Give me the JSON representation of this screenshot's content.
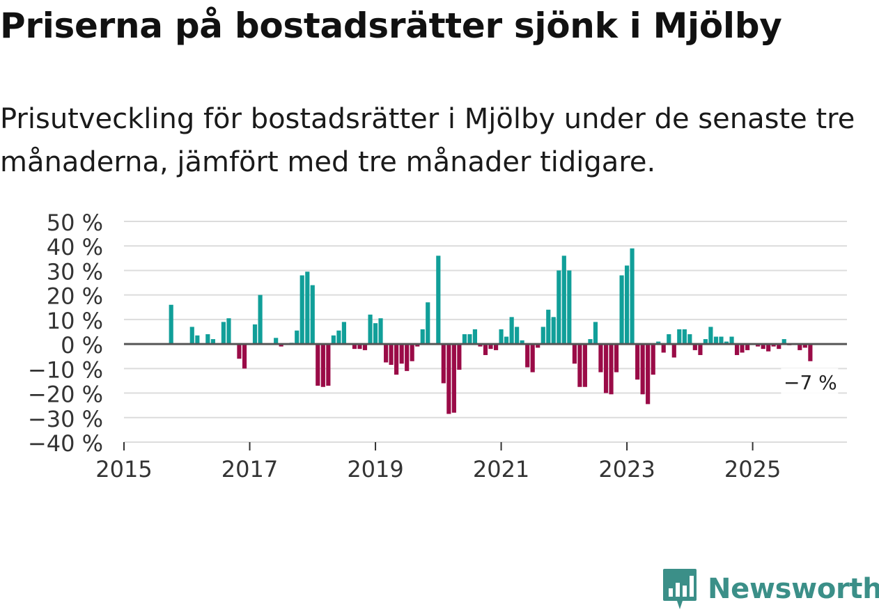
{
  "title": "Priserna på bostadsrätter sjönk i Mjölby",
  "subtitle": "Prisutveckling för bostadsrätter i Mjölby under de senaste tre månaderna, jämfört med tre månader tidigare.",
  "brand": "Newsworthy",
  "colors": {
    "positive": "#119f99",
    "negative": "#9a0b47",
    "grid": "#dcdcdc",
    "zero_line": "#555555",
    "axis_text": "#333333"
  },
  "chart_data": {
    "type": "bar",
    "title": "Priserna på bostadsrätter sjönk i Mjölby",
    "xlabel": "",
    "ylabel": "",
    "x_unit": "year",
    "xlim": [
      2015.0,
      2026.5
    ],
    "ylim": [
      -40,
      50
    ],
    "y_ticks": [
      50,
      40,
      30,
      20,
      10,
      0,
      -10,
      -20,
      -30,
      -40
    ],
    "y_tick_labels": [
      "50 %",
      "40 %",
      "30 %",
      "20 %",
      "10 %",
      "0 %",
      "−10 %",
      "−20 %",
      "−30 %",
      "−40 %"
    ],
    "x_ticks": [
      2015,
      2017,
      2019,
      2021,
      2023,
      2025
    ],
    "x_tick_labels": [
      "2015",
      "2017",
      "2019",
      "2021",
      "2023",
      "2025"
    ],
    "annotation": {
      "text": "−7 %",
      "x": 2025.917,
      "y": -7
    },
    "x": [
      2015.75,
      2016.083,
      2016.167,
      2016.333,
      2016.417,
      2016.583,
      2016.667,
      2016.833,
      2016.917,
      2017.083,
      2017.167,
      2017.417,
      2017.5,
      2017.667,
      2017.75,
      2017.833,
      2017.917,
      2018.0,
      2018.083,
      2018.167,
      2018.25,
      2018.333,
      2018.417,
      2018.5,
      2018.667,
      2018.75,
      2018.833,
      2018.917,
      2019.0,
      2019.083,
      2019.167,
      2019.25,
      2019.333,
      2019.417,
      2019.5,
      2019.583,
      2019.667,
      2019.75,
      2019.833,
      2020.0,
      2020.083,
      2020.167,
      2020.25,
      2020.333,
      2020.417,
      2020.5,
      2020.583,
      2020.667,
      2020.75,
      2020.833,
      2020.917,
      2021.0,
      2021.083,
      2021.167,
      2021.25,
      2021.333,
      2021.417,
      2021.5,
      2021.583,
      2021.667,
      2021.75,
      2021.833,
      2021.917,
      2022.0,
      2022.083,
      2022.167,
      2022.25,
      2022.333,
      2022.417,
      2022.5,
      2022.583,
      2022.667,
      2022.75,
      2022.833,
      2022.917,
      2023.0,
      2023.083,
      2023.167,
      2023.25,
      2023.333,
      2023.417,
      2023.5,
      2023.583,
      2023.667,
      2023.75,
      2023.833,
      2023.917,
      2024.0,
      2024.083,
      2024.167,
      2024.25,
      2024.333,
      2024.417,
      2024.5,
      2024.583,
      2024.667,
      2024.75,
      2024.833,
      2024.917,
      2025.083,
      2025.167,
      2025.25,
      2025.333,
      2025.417,
      2025.5,
      2025.583,
      2025.75,
      2025.833,
      2025.917
    ],
    "values": [
      16,
      7,
      3.5,
      4,
      2,
      9,
      10.5,
      -6,
      -10,
      8,
      20,
      2.5,
      -1,
      0.5,
      5.5,
      28,
      29.5,
      24,
      -17,
      -17.5,
      -17,
      3.5,
      5.5,
      9,
      -2,
      -2,
      -2.5,
      12,
      8.5,
      10.5,
      -7.5,
      -8.5,
      -12.5,
      -8,
      -11,
      -7,
      -1,
      6,
      17,
      36,
      -16,
      -28.5,
      -28,
      -10.5,
      4,
      4,
      6,
      -1,
      -4.5,
      -2,
      -2.5,
      6,
      3,
      11,
      7,
      1.5,
      -9.5,
      -11.5,
      -1.5,
      7,
      14,
      11,
      30,
      36,
      30,
      -8,
      -17.5,
      -17.5,
      2,
      9,
      -11.5,
      -20,
      -20.5,
      -11.5,
      28,
      32,
      39,
      -14.5,
      -20.5,
      -24.5,
      -12.5,
      1,
      -3.5,
      4,
      -5.5,
      6,
      6,
      4,
      -2.5,
      -4.5,
      2,
      7,
      3,
      3,
      1,
      3,
      -4.5,
      -3.5,
      -2.5,
      -1,
      -2,
      -3,
      -1,
      -2,
      2,
      -0.5,
      -2.5,
      -1.5,
      -7
    ]
  }
}
